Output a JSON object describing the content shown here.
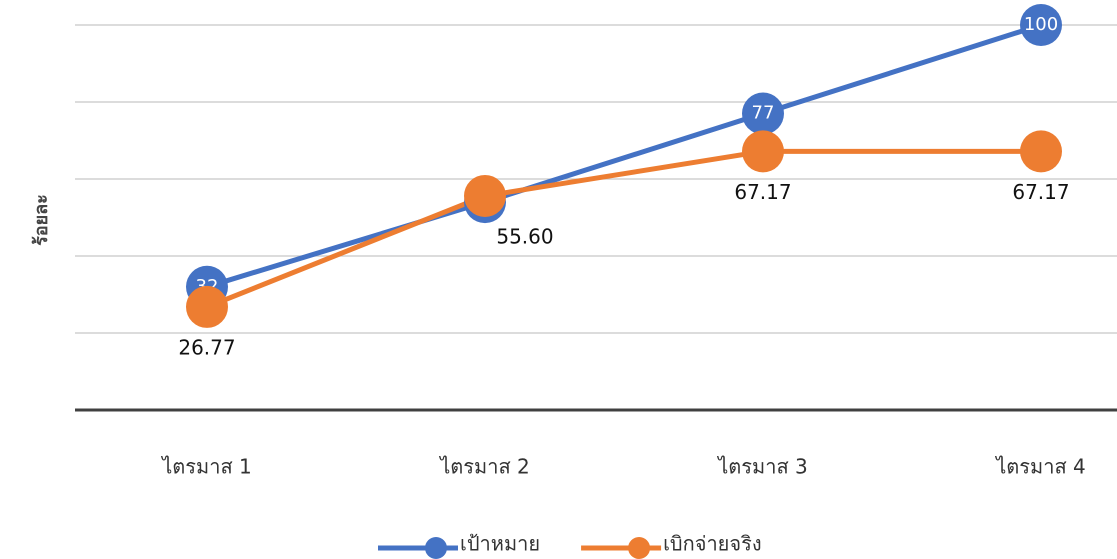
{
  "chart_data": {
    "type": "line",
    "y_label": "ร้อยละ",
    "categories": [
      "ไตรมาส 1",
      "ไตรมาส 2",
      "ไตรมาส 3",
      "ไตรมาส 4"
    ],
    "series": [
      {
        "name": "เป้าหมาย",
        "color": "#4472c4",
        "values": [
          32,
          54,
          77,
          100
        ]
      },
      {
        "name": "เบิกจ่ายจริง",
        "color": "#ed7d31",
        "values": [
          26.77,
          55.6,
          67.17,
          67.17
        ],
        "value_labels": [
          "26.77",
          "55.60",
          "67.17",
          "67.17"
        ]
      }
    ],
    "ylim": [
      0,
      100
    ],
    "yticks": [
      0,
      20,
      40,
      60,
      80,
      100
    ],
    "grid": true,
    "legend": "bottom"
  }
}
